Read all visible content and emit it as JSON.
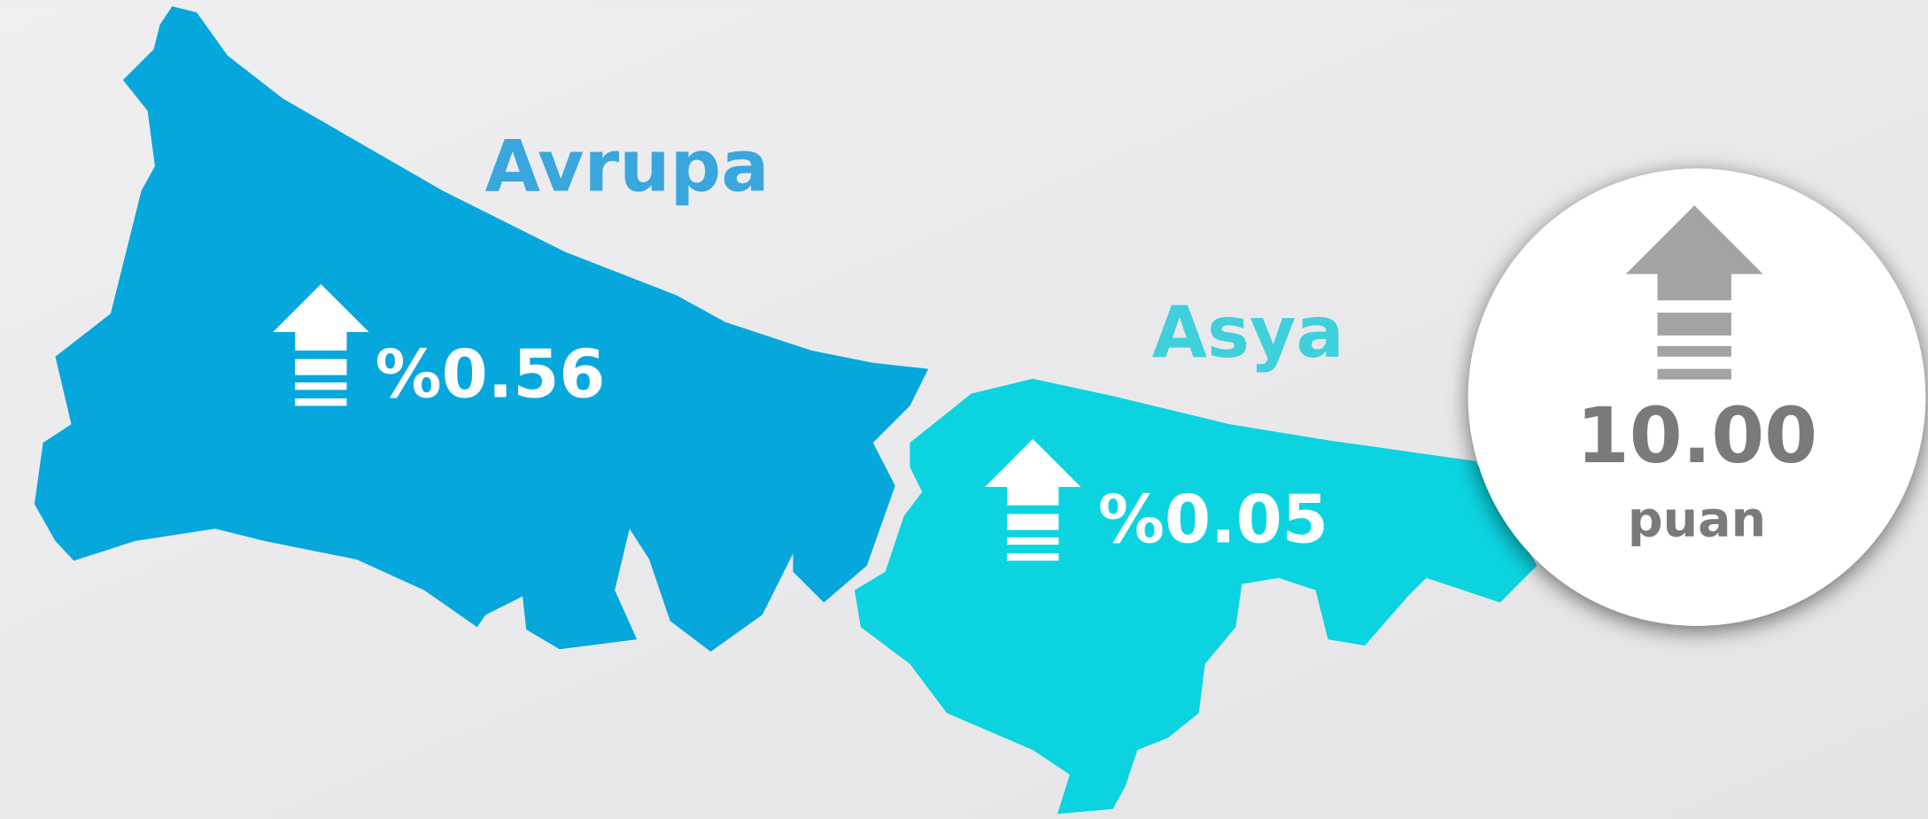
{
  "regions": [
    {
      "name": "Avrupa",
      "change": "%0.56"
    },
    {
      "name": "Asya",
      "change": "%0.05"
    }
  ],
  "score": {
    "value": "10.00",
    "unit": "puan"
  }
}
